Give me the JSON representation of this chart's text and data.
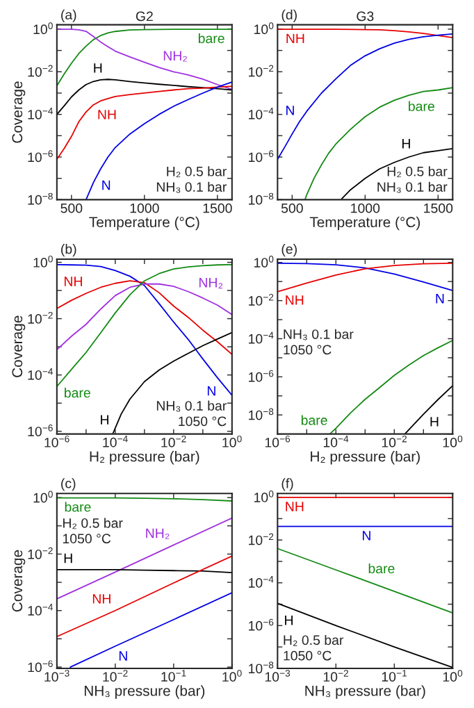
{
  "chart_data": [
    {
      "type": "line",
      "title": "G2",
      "xlabel": "Temperature (°C)",
      "ylabel": "Coverage",
      "log": "y",
      "xlim": [
        400,
        1600
      ],
      "xticks": [
        500,
        1000,
        1500
      ],
      "ylim": [
        1e-08,
        1.6
      ],
      "yticks": [
        {
          "value": 1,
          "label": "10$^{0}$"
        },
        {
          "value": 0.1,
          "label": null
        },
        {
          "value": 0.01,
          "label": "10$^{−2}$"
        },
        {
          "value": 0.001,
          "label": null
        },
        {
          "value": 0.0001,
          "label": "10$^{−4}$"
        },
        {
          "value": 1e-05,
          "label": null
        },
        {
          "value": 1e-06,
          "label": "10$^{−6}$"
        },
        {
          "value": 1e-07,
          "label": null
        },
        {
          "value": 1e-08,
          "label": "10$^{−8}$"
        }
      ],
      "annotations": [
        "(a)",
        "H₂ 0.5 bar\nNH₃ 0.1 bar"
      ],
      "series": [
        {
          "name": "bare",
          "color": "#138a13",
          "x": [
            400,
            450,
            500,
            550,
            600,
            650,
            700,
            750,
            800,
            900,
            1000,
            1200,
            1600
          ],
          "values": [
            0.0022,
            0.0079,
            0.025,
            0.071,
            0.16,
            0.32,
            0.5,
            0.66,
            0.78,
            0.91,
            0.95,
            0.98,
            0.98
          ]
        },
        {
          "name": "NH₂",
          "color": "#a030e0",
          "x": [
            400,
            500,
            550,
            600,
            650,
            700,
            750,
            800,
            900,
            1000,
            1100,
            1200,
            1300,
            1400,
            1500,
            1600
          ],
          "values": [
            0.98,
            0.98,
            0.93,
            0.79,
            0.45,
            0.25,
            0.15,
            0.093,
            0.05,
            0.028,
            0.016,
            0.01,
            0.0071,
            0.0045,
            0.0025,
            0.0015
          ]
        },
        {
          "name": "H",
          "color": "#000000",
          "x": [
            400,
            450,
            500,
            550,
            600,
            650,
            700,
            750,
            800,
            900,
            1000,
            1100,
            1200,
            1300,
            1400,
            1500,
            1600
          ],
          "values": [
            0.0001,
            0.00025,
            0.00066,
            0.0014,
            0.0025,
            0.0035,
            0.0042,
            0.0044,
            0.0042,
            0.0035,
            0.003,
            0.0026,
            0.0023,
            0.002,
            0.0018,
            0.0016,
            0.0014
          ]
        },
        {
          "name": "NH",
          "color": "#e60000",
          "x": [
            400,
            450,
            500,
            550,
            600,
            650,
            700,
            750,
            800,
            900,
            1000,
            1100,
            1200,
            1300,
            1400,
            1500,
            1600
          ],
          "values": [
            7.9e-07,
            2.5e-06,
            9.3e-06,
            4.5e-05,
            0.00013,
            0.00028,
            0.00043,
            0.00055,
            0.00069,
            0.00085,
            0.001,
            0.0012,
            0.0014,
            0.0016,
            0.0017,
            0.0019,
            0.0021
          ]
        },
        {
          "name": "N",
          "color": "#0000e6",
          "x": [
            600,
            650,
            700,
            750,
            800,
            900,
            1000,
            1100,
            1200,
            1300,
            1400,
            1500,
            1600
          ],
          "values": [
            1e-08,
            6.3e-08,
            2.8e-07,
            1e-06,
            2.8e-06,
            1.2e-05,
            3.7e-05,
            0.0001,
            0.00024,
            0.0005,
            0.001,
            0.0019,
            0.0033
          ]
        }
      ]
    },
    {
      "type": "line",
      "title": "G3",
      "xlabel": "Temperature (°C)",
      "log": "y",
      "xlim": [
        400,
        1600
      ],
      "xticks": [
        500,
        1000,
        1500
      ],
      "ylim": [
        1e-08,
        1.6
      ],
      "yticks": [
        {
          "value": 1,
          "label": "10$^{0}$"
        },
        {
          "value": 0.1,
          "label": null
        },
        {
          "value": 0.01,
          "label": "10$^{−2}$"
        },
        {
          "value": 0.001,
          "label": null
        },
        {
          "value": 0.0001,
          "label": "10$^{−4}$"
        },
        {
          "value": 1e-05,
          "label": null
        },
        {
          "value": 1e-06,
          "label": "10$^{−6}$"
        },
        {
          "value": 1e-07,
          "label": null
        },
        {
          "value": 1e-08,
          "label": "10$^{−8}$"
        }
      ],
      "annotations": [
        "(d)",
        "H₂ 0.5 bar\nNH₃ 0.1 bar"
      ],
      "series": [
        {
          "name": "NH",
          "color": "#e60000",
          "x": [
            400,
            800,
            1000,
            1100,
            1200,
            1300,
            1400,
            1500,
            1600
          ],
          "values": [
            0.98,
            0.98,
            0.95,
            0.93,
            0.85,
            0.74,
            0.63,
            0.5,
            0.4
          ]
        },
        {
          "name": "N",
          "color": "#0000e6",
          "x": [
            400,
            450,
            500,
            550,
            600,
            700,
            800,
            900,
            1000,
            1100,
            1200,
            1300,
            1400,
            1500,
            1600
          ],
          "values": [
            7.8e-07,
            3e-06,
            1.2e-05,
            4.5e-05,
            0.00014,
            0.00098,
            0.0047,
            0.02,
            0.056,
            0.12,
            0.22,
            0.33,
            0.44,
            0.52,
            0.59
          ]
        },
        {
          "name": "bare",
          "color": "#138a13",
          "x": [
            590,
            600,
            650,
            700,
            750,
            800,
            900,
            1000,
            1100,
            1200,
            1300,
            1400,
            1500,
            1600
          ],
          "values": [
            1.1e-08,
            1.7e-08,
            1e-07,
            4.2e-07,
            1.5e-06,
            4.1e-06,
            2e-05,
            7.8e-05,
            0.00022,
            0.00046,
            0.00079,
            0.0012,
            0.0014,
            0.0018
          ]
        },
        {
          "name": "H",
          "color": "#000000",
          "x": [
            840,
            900,
            1000,
            1100,
            1200,
            1300,
            1400,
            1500,
            1600
          ],
          "values": [
            1.1e-08,
            2.9e-08,
            1e-07,
            2.8e-07,
            5.6e-07,
            1e-06,
            1.6e-06,
            2e-06,
            2.5e-06
          ]
        }
      ]
    },
    {
      "type": "line",
      "xlabel": "H₂ pressure (bar)",
      "ylabel": "Coverage",
      "log": "xy",
      "xlim": [
        1e-06,
        1
      ],
      "xticks": [
        {
          "value": 1e-06,
          "label": "10$^{−6}$"
        },
        {
          "value": 1e-05,
          "label": null
        },
        {
          "value": 0.0001,
          "label": "10$^{−4}$"
        },
        {
          "value": 0.001,
          "label": null
        },
        {
          "value": 0.01,
          "label": "10$^{−2}$"
        },
        {
          "value": 0.1,
          "label": null
        },
        {
          "value": 1,
          "label": "10$^{0}$"
        }
      ],
      "ylim": [
        8e-07,
        1.3
      ],
      "yticks": [
        {
          "value": 1,
          "label": "10$^{0}$"
        },
        {
          "value": 0.1,
          "label": null
        },
        {
          "value": 0.01,
          "label": "10$^{−2}$"
        },
        {
          "value": 0.001,
          "label": null
        },
        {
          "value": 0.0001,
          "label": "10$^{−4}$"
        },
        {
          "value": 1e-05,
          "label": null
        },
        {
          "value": 1e-06,
          "label": "10$^{−6}$"
        }
      ],
      "annotations": [
        "(b)",
        "NH₃ 0.1 bar\n1050 °C"
      ],
      "series": [
        {
          "name": "N",
          "color": "#0000e6",
          "x": [
            1e-06,
            3.2e-06,
            1e-05,
            3.2e-05,
            0.0001,
            0.00032,
            0.001,
            0.0032,
            0.01,
            0.032,
            0.1,
            0.32,
            1
          ],
          "values": [
            0.83,
            0.81,
            0.79,
            0.71,
            0.51,
            0.32,
            0.15,
            0.034,
            0.0076,
            0.0018,
            0.00037,
            7.9e-05,
            1.9e-05
          ]
        },
        {
          "name": "NH",
          "color": "#e60000",
          "x": [
            1e-06,
            3.2e-06,
            1e-05,
            3.2e-05,
            0.0001,
            0.00032,
            0.001,
            0.0032,
            0.01,
            0.032,
            0.1,
            0.32,
            1
          ],
          "values": [
            0.023,
            0.045,
            0.079,
            0.13,
            0.18,
            0.22,
            0.19,
            0.083,
            0.028,
            0.011,
            0.0039,
            0.0015,
            0.00054
          ]
        },
        {
          "name": "NH₂",
          "color": "#a030e0",
          "x": [
            1e-06,
            3.2e-06,
            1e-05,
            3.2e-05,
            0.0001,
            0.00032,
            0.001,
            0.0032,
            0.01,
            0.032,
            0.1,
            0.32,
            1
          ],
          "values": [
            0.00079,
            0.0024,
            0.0063,
            0.022,
            0.066,
            0.13,
            0.17,
            0.17,
            0.14,
            0.091,
            0.054,
            0.03,
            0.014
          ]
        },
        {
          "name": "bare",
          "color": "#138a13",
          "x": [
            1e-06,
            3.2e-06,
            1e-05,
            3.2e-05,
            0.0001,
            0.00032,
            0.001,
            0.0032,
            0.01,
            0.032,
            0.1,
            0.32,
            1
          ],
          "values": [
            3.9e-05,
            0.00016,
            0.00063,
            0.0032,
            0.016,
            0.071,
            0.22,
            0.4,
            0.58,
            0.69,
            0.76,
            0.81,
            0.83
          ]
        },
        {
          "name": "H",
          "color": "#000000",
          "x": [
            8.3e-05,
            0.0001,
            0.00016,
            0.00032,
            0.001,
            0.0032,
            0.01,
            0.032,
            0.1,
            0.32,
            1
          ],
          "values": [
            8.3e-07,
            1.3e-06,
            4.1e-06,
            1.4e-05,
            5.8e-05,
            0.00015,
            0.00031,
            0.00059,
            0.0011,
            0.0019,
            0.0032
          ]
        }
      ]
    },
    {
      "type": "line",
      "xlabel": "H₂ pressure (bar)",
      "log": "xy",
      "xlim": [
        1e-06,
        1
      ],
      "xticks": [
        {
          "value": 1e-06,
          "label": "10$^{−6}$"
        },
        {
          "value": 1e-05,
          "label": null
        },
        {
          "value": 0.0001,
          "label": "10$^{−4}$"
        },
        {
          "value": 0.001,
          "label": null
        },
        {
          "value": 0.01,
          "label": "10$^{−2}$"
        },
        {
          "value": 0.1,
          "label": null
        },
        {
          "value": 1,
          "label": "10$^{0}$"
        }
      ],
      "ylim": [
        1e-09,
        1.5
      ],
      "yticks": [
        {
          "value": 1,
          "label": "10$^{0}$"
        },
        {
          "value": 0.1,
          "label": null
        },
        {
          "value": 0.01,
          "label": "10$^{−2}$"
        },
        {
          "value": 0.001,
          "label": null
        },
        {
          "value": 0.0001,
          "label": "10$^{−4}$"
        },
        {
          "value": 1e-05,
          "label": null
        },
        {
          "value": 1e-06,
          "label": "10$^{−6}$"
        },
        {
          "value": 1e-07,
          "label": null
        },
        {
          "value": 1e-08,
          "label": "10$^{−8}$"
        },
        {
          "value": 1e-09,
          "label": null
        }
      ],
      "annotations": [
        "(e)",
        "NH₃ 0.1 bar\n1050 °C"
      ],
      "series": [
        {
          "name": "N",
          "color": "#0000e6",
          "x": [
            1e-06,
            1e-05,
            0.0001,
            0.001,
            0.01,
            0.1,
            1
          ],
          "values": [
            0.91,
            0.87,
            0.76,
            0.52,
            0.25,
            0.095,
            0.034
          ]
        },
        {
          "name": "NH",
          "color": "#e60000",
          "x": [
            1e-06,
            1e-05,
            0.0001,
            0.001,
            0.01,
            0.1,
            1
          ],
          "values": [
            0.029,
            0.083,
            0.22,
            0.47,
            0.69,
            0.85,
            0.91
          ]
        },
        {
          "name": "bare",
          "color": "#138a13",
          "x": [
            6.2e-05,
            0.0001,
            0.00032,
            0.001,
            0.0032,
            0.01,
            0.032,
            0.1,
            0.32,
            1
          ],
          "values": [
            1e-09,
            2e-09,
            1.3e-08,
            6.6e-08,
            2.8e-07,
            1.2e-06,
            4.2e-06,
            1.3e-05,
            3.4e-05,
            8.1e-05
          ]
        },
        {
          "name": "H",
          "color": "#000000",
          "x": [
            0.023,
            0.1,
            0.32,
            1
          ],
          "values": [
            1e-09,
            1.1e-08,
            6.6e-08,
            3.4e-07
          ]
        }
      ]
    },
    {
      "type": "line",
      "xlabel": "NH₃ pressure (bar)",
      "ylabel": "Coverage",
      "log": "xy",
      "xlim": [
        0.001,
        1
      ],
      "xticks": [
        {
          "value": 0.001,
          "label": "10$^{−3}$"
        },
        {
          "value": 0.01,
          "label": "10$^{−2}$"
        },
        {
          "value": 0.1,
          "label": "10$^{−1}$"
        },
        {
          "value": 1,
          "label": "10$^{0}$"
        }
      ],
      "ylim": [
        9e-07,
        1.4
      ],
      "yticks": [
        {
          "value": 1,
          "label": "10$^{0}$"
        },
        {
          "value": 0.1,
          "label": null
        },
        {
          "value": 0.01,
          "label": "10$^{−2}$"
        },
        {
          "value": 0.001,
          "label": null
        },
        {
          "value": 0.0001,
          "label": "10$^{−4}$"
        },
        {
          "value": 1e-05,
          "label": null
        },
        {
          "value": 1e-06,
          "label": "10$^{−6}$"
        }
      ],
      "annotations": [
        "(c)",
        "H₂ 0.5 bar\n1050 °C"
      ],
      "series": [
        {
          "name": "bare",
          "color": "#138a13",
          "x": [
            0.001,
            0.01,
            0.032,
            0.1,
            0.32,
            1
          ],
          "values": [
            0.98,
            0.98,
            0.95,
            0.91,
            0.85,
            0.76
          ]
        },
        {
          "name": "NH₂",
          "color": "#a030e0",
          "x": [
            0.001,
            0.01,
            0.1,
            1
          ],
          "values": [
            0.00026,
            0.0023,
            0.021,
            0.19
          ]
        },
        {
          "name": "H",
          "color": "#000000",
          "x": [
            0.001,
            0.01,
            0.032,
            0.1,
            0.32,
            1
          ],
          "values": [
            0.0028,
            0.0028,
            0.0027,
            0.0026,
            0.0025,
            0.0022
          ]
        },
        {
          "name": "NH",
          "color": "#e60000",
          "x": [
            0.001,
            0.01,
            0.1,
            1
          ],
          "values": [
            1.2e-05,
            0.0001,
            0.00095,
            0.0085
          ]
        },
        {
          "name": "N",
          "color": "#0000e6",
          "x": [
            0.0017,
            0.01,
            0.1,
            1
          ],
          "values": [
            1e-06,
            5.5e-06,
            4.8e-05,
            0.00043
          ]
        }
      ]
    },
    {
      "type": "line",
      "xlabel": "NH₃ pressure (bar)",
      "log": "xy",
      "xlim": [
        0.001,
        1
      ],
      "xticks": [
        {
          "value": 0.001,
          "label": "10$^{−3}$"
        },
        {
          "value": 0.01,
          "label": "10$^{−2}$"
        },
        {
          "value": 0.1,
          "label": "10$^{−1}$"
        },
        {
          "value": 1,
          "label": "10$^{0}$"
        }
      ],
      "ylim": [
        1e-08,
        1.5
      ],
      "yticks": [
        {
          "value": 1,
          "label": "10$^{0}$"
        },
        {
          "value": 0.1,
          "label": null
        },
        {
          "value": 0.01,
          "label": "10$^{−2}$"
        },
        {
          "value": 0.001,
          "label": null
        },
        {
          "value": 0.0001,
          "label": "10$^{−4}$"
        },
        {
          "value": 1e-05,
          "label": null
        },
        {
          "value": 1e-06,
          "label": "10$^{−6}$"
        },
        {
          "value": 1e-07,
          "label": null
        },
        {
          "value": 1e-08,
          "label": "10$^{−8}$"
        }
      ],
      "annotations": [
        "(f)",
        "H₂ 0.5 bar\n1050 °C"
      ],
      "series": [
        {
          "name": "NH",
          "color": "#e60000",
          "x": [
            0.001,
            0.01,
            0.1,
            1
          ],
          "values": [
            0.98,
            0.98,
            0.98,
            0.98
          ]
        },
        {
          "name": "N",
          "color": "#0000e6",
          "x": [
            0.001,
            0.01,
            0.1,
            1
          ],
          "values": [
            0.043,
            0.043,
            0.043,
            0.043
          ]
        },
        {
          "name": "bare",
          "color": "#138a13",
          "x": [
            0.001,
            0.01,
            0.1,
            1
          ],
          "values": [
            0.004,
            0.0004,
            4e-05,
            3.9e-06
          ]
        },
        {
          "name": "H",
          "color": "#000000",
          "x": [
            0.001,
            0.01,
            0.1,
            1
          ],
          "values": [
            1.1e-05,
            1e-06,
            1e-07,
            1.1e-08
          ]
        }
      ]
    }
  ]
}
